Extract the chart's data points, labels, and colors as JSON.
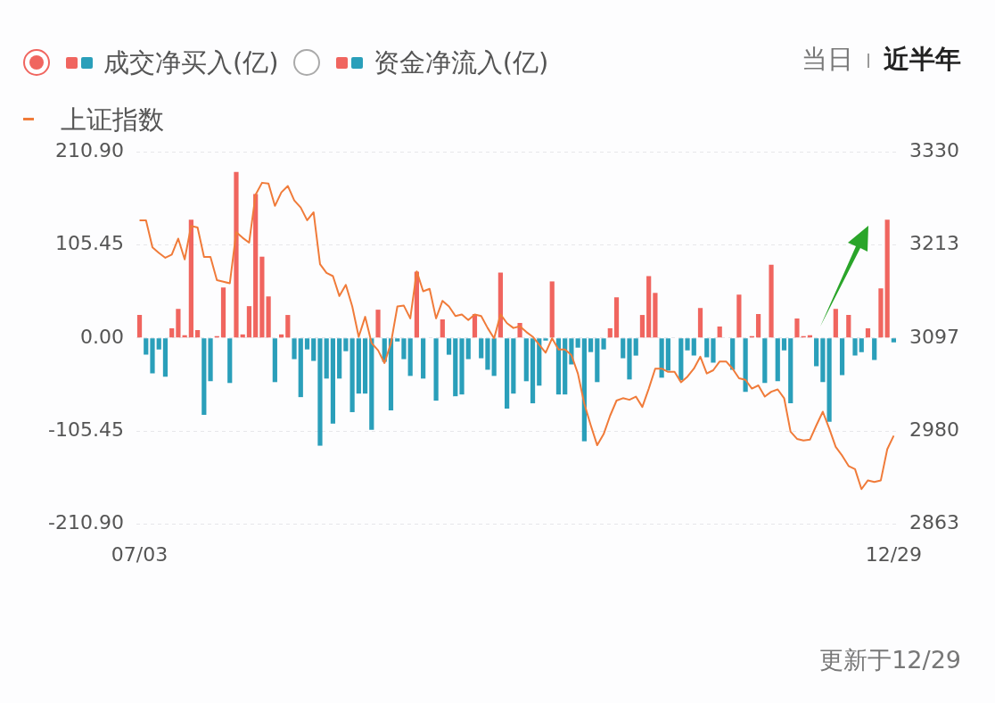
{
  "chart_data": {
    "type": "bar",
    "categories": [
      "07/03",
      null,
      null,
      null,
      null,
      null,
      null,
      null,
      null,
      null,
      null,
      null,
      null,
      null,
      null,
      null,
      null,
      null,
      null,
      null,
      null,
      null,
      null,
      null,
      null,
      null,
      null,
      null,
      null,
      null,
      null,
      null,
      null,
      null,
      null,
      null,
      null,
      null,
      null,
      null,
      null,
      null,
      null,
      null,
      null,
      null,
      null,
      null,
      null,
      null,
      null,
      null,
      null,
      null,
      null,
      null,
      null,
      null,
      null,
      null,
      null,
      null,
      null,
      null,
      null,
      null,
      null,
      null,
      null,
      null,
      null,
      null,
      null,
      null,
      null,
      null,
      null,
      null,
      null,
      null,
      null,
      null,
      null,
      null,
      null,
      null,
      null,
      null,
      null,
      null,
      null,
      null,
      null,
      null,
      null,
      null,
      null,
      null,
      null,
      null,
      null,
      null,
      null,
      null,
      null,
      null,
      null,
      null,
      null,
      null,
      null,
      null,
      null,
      null,
      null,
      null,
      null,
      "12/29"
    ],
    "series": [
      {
        "name": "成交净买入(亿)",
        "axis": "y",
        "values": [
          26,
          -19,
          -40,
          -13,
          -44,
          11,
          33,
          3,
          134,
          9,
          -87,
          -49,
          2,
          57,
          -51,
          188,
          4,
          36,
          163,
          92,
          47,
          -50,
          4,
          26,
          -24,
          -67,
          -13,
          -26,
          -122,
          -46,
          -97,
          -46,
          -15,
          -84,
          -63,
          -63,
          -104,
          32,
          -27,
          -82,
          -4,
          -24,
          -43,
          75,
          -46,
          0,
          -71,
          21,
          -19,
          -66,
          -64,
          -24,
          27,
          -23,
          -36,
          -43,
          74,
          -80,
          -63,
          17,
          -49,
          -74,
          -54,
          -3,
          64,
          -64,
          -64,
          -30,
          -11,
          -117,
          -16,
          -50,
          -13,
          11,
          46,
          -23,
          -47,
          -20,
          26,
          70,
          51,
          -45,
          -37,
          0,
          -48,
          -14,
          -20,
          34,
          -22,
          -28,
          13,
          0,
          -36,
          49,
          -61,
          2,
          27,
          -51,
          83,
          -49,
          -14,
          -74,
          22,
          2,
          3,
          -32,
          -50,
          -95,
          33,
          -42,
          26,
          -20,
          -16,
          11,
          -25,
          56,
          134,
          -5
        ],
        "colors": [
          "#f0655f",
          "#2a9fba",
          "#2a9fba",
          "#2a9fba",
          "#2a9fba",
          "#f0655f",
          "#f0655f",
          "#f0655f",
          "#f0655f",
          "#f0655f",
          "#2a9fba",
          "#2a9fba",
          "#f0655f",
          "#f0655f",
          "#2a9fba",
          "#f0655f",
          "#f0655f",
          "#f0655f",
          "#f0655f",
          "#f0655f",
          "#f0655f",
          "#2a9fba",
          "#f0655f",
          "#f0655f",
          "#2a9fba",
          "#2a9fba",
          "#2a9fba",
          "#2a9fba",
          "#2a9fba",
          "#2a9fba",
          "#2a9fba",
          "#2a9fba",
          "#2a9fba",
          "#2a9fba",
          "#2a9fba",
          "#2a9fba",
          "#2a9fba",
          "#f0655f",
          "#2a9fba",
          "#2a9fba",
          "#2a9fba",
          "#2a9fba",
          "#2a9fba",
          "#f0655f",
          "#2a9fba",
          "#2a9fba",
          "#2a9fba",
          "#f0655f",
          "#2a9fba",
          "#2a9fba",
          "#2a9fba",
          "#2a9fba",
          "#f0655f",
          "#2a9fba",
          "#2a9fba",
          "#2a9fba",
          "#f0655f",
          "#2a9fba",
          "#2a9fba",
          "#f0655f",
          "#2a9fba",
          "#2a9fba",
          "#2a9fba",
          "#2a9fba",
          "#f0655f",
          "#2a9fba",
          "#2a9fba",
          "#2a9fba",
          "#2a9fba",
          "#2a9fba",
          "#2a9fba",
          "#2a9fba",
          "#2a9fba",
          "#f0655f",
          "#f0655f",
          "#2a9fba",
          "#2a9fba",
          "#2a9fba",
          "#f0655f",
          "#f0655f",
          "#f0655f",
          "#2a9fba",
          "#2a9fba",
          "#2a9fba",
          "#2a9fba",
          "#2a9fba",
          "#2a9fba",
          "#f0655f",
          "#2a9fba",
          "#2a9fba",
          "#f0655f",
          "#f0655f",
          "#2a9fba",
          "#f0655f",
          "#2a9fba",
          "#f0655f",
          "#f0655f",
          "#2a9fba",
          "#f0655f",
          "#2a9fba",
          "#2a9fba",
          "#2a9fba",
          "#f0655f",
          "#f0655f",
          "#f0655f",
          "#2a9fba",
          "#2a9fba",
          "#2a9fba",
          "#f0655f",
          "#2a9fba",
          "#f0655f",
          "#2a9fba",
          "#2a9fba",
          "#f0655f",
          "#2a9fba",
          "#f0655f",
          "#f0655f",
          "#2a9fba"
        ]
      },
      {
        "name": "上证指数",
        "type": "line",
        "axis": "y2",
        "color": "#f07b3a",
        "values": [
          3244,
          3244,
          3210,
          3203,
          3197,
          3201,
          3221,
          3195,
          3237,
          3235,
          3198,
          3198,
          3169,
          3167,
          3165,
          3229,
          3222,
          3216,
          3276,
          3291,
          3290,
          3262,
          3279,
          3287,
          3269,
          3260,
          3244,
          3254,
          3189,
          3178,
          3174,
          3149,
          3163,
          3136,
          3098,
          3123,
          3090,
          3081,
          3065,
          3090,
          3136,
          3137,
          3121,
          3180,
          3155,
          3158,
          3121,
          3143,
          3136,
          3124,
          3126,
          3119,
          3126,
          3124,
          3109,
          3096,
          3126,
          3115,
          3109,
          3111,
          3104,
          3098,
          3088,
          3078,
          3096,
          3082,
          3082,
          3075,
          3052,
          3014,
          2987,
          2962,
          2976,
          2999,
          3018,
          3021,
          3019,
          3023,
          3010,
          3033,
          3058,
          3058,
          3054,
          3054,
          3041,
          3048,
          3058,
          3073,
          3052,
          3056,
          3067,
          3067,
          3058,
          3046,
          3044,
          3033,
          3037,
          3023,
          3029,
          3032,
          3021,
          2979,
          2970,
          2968,
          2969,
          2987,
          3004,
          2983,
          2960,
          2949,
          2936,
          2932,
          2907,
          2918,
          2916,
          2918,
          2957,
          2974
        ]
      }
    ],
    "ylim": [
      -210.9,
      210.9
    ],
    "yticks": [
      {
        "value": -210.9,
        "label": "-210.90"
      },
      {
        "value": -105.45,
        "label": "-105.45"
      },
      {
        "value": 0,
        "label": "0.00"
      },
      {
        "value": 105.45,
        "label": "105.45"
      },
      {
        "value": 210.9,
        "label": "210.90"
      }
    ],
    "y2lim": [
      2863,
      3330
    ],
    "y2ticks": [
      2863,
      {
        "value": 2979.75,
        "label": "2980"
      },
      {
        "value": 3096.5,
        "label": "3097"
      },
      {
        "value": 3213.25,
        "label": "3213"
      },
      3330
    ],
    "grid": "y",
    "legend": "top left",
    "marker": "none",
    "line_style": "solid",
    "annotations": [
      "资金净流入(亿)",
      "当日",
      "近半年",
      "更新于12/29"
    ]
  }
}
